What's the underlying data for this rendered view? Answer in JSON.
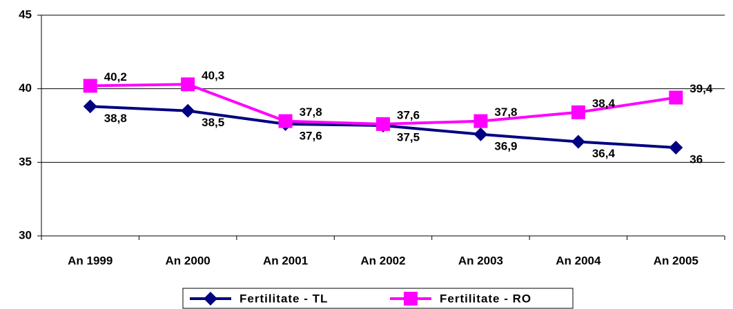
{
  "chart_data": {
    "type": "line",
    "categories": [
      "An 1999",
      "An 2000",
      "An  2001",
      "An 2002",
      "An 2003",
      "An 2004",
      "An 2005"
    ],
    "series": [
      {
        "name": "Fertilitate - TL",
        "color": "#000080",
        "marker": "diamond",
        "values": [
          38.8,
          38.5,
          37.6,
          37.5,
          36.9,
          36.4,
          36
        ],
        "value_labels": [
          "38,8",
          "38,5",
          "37,6",
          "37,5",
          "36,9",
          "36,4",
          "36"
        ]
      },
      {
        "name": "Fertilitate - RO",
        "color": "#ff00ff",
        "marker": "square",
        "values": [
          40.2,
          40.3,
          37.8,
          37.6,
          37.8,
          38.4,
          39.4
        ],
        "value_labels": [
          "40,2",
          "40,3",
          "37,8",
          "37,6",
          "37,8",
          "38,4",
          "39,4"
        ]
      }
    ],
    "ylim": [
      30,
      45
    ],
    "yticks": [
      30,
      35,
      40,
      45
    ],
    "grid": true,
    "legend": "bottom"
  }
}
